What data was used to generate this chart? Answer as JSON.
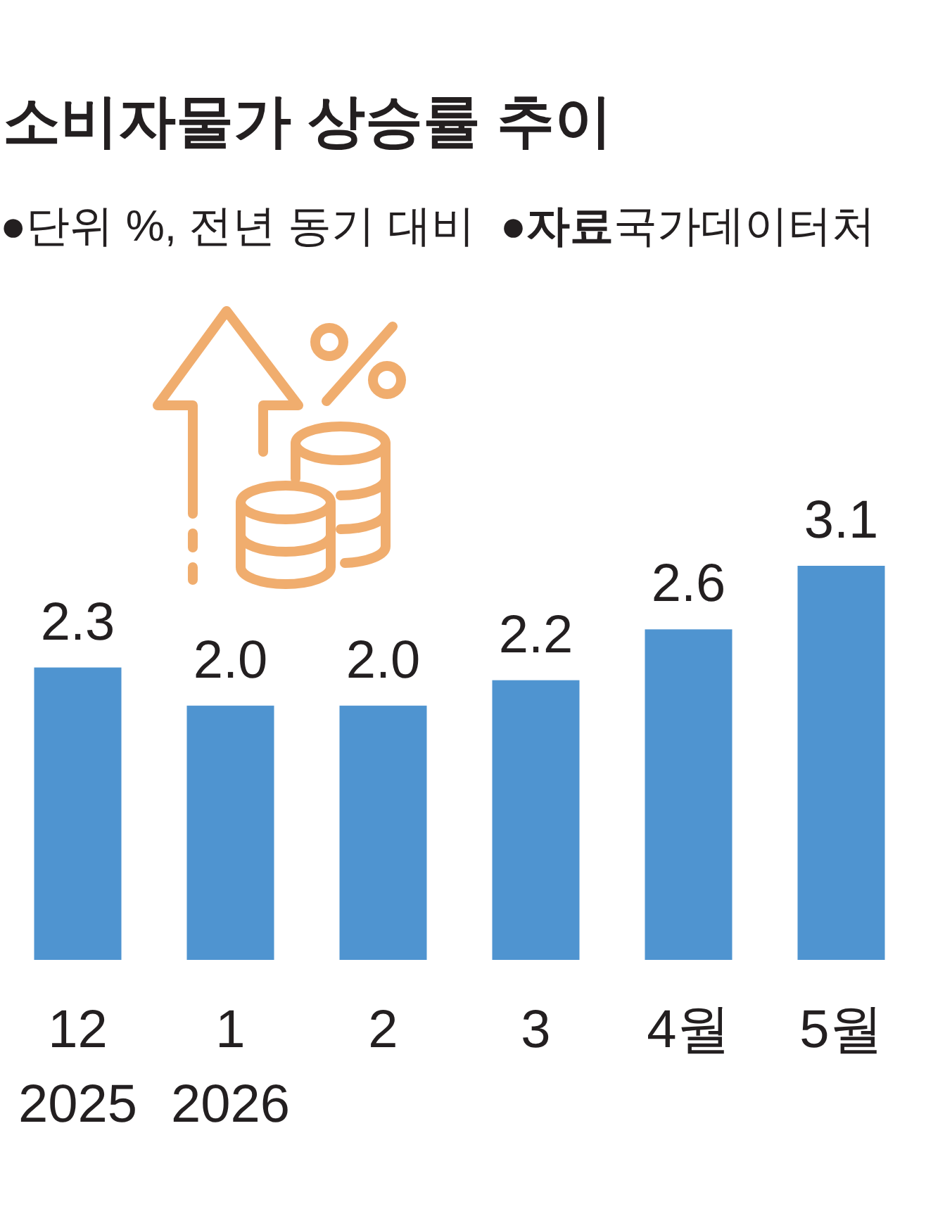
{
  "chart_data": {
    "type": "bar",
    "title": "소비자물가 상승률 추이",
    "subtitle": "●단위 %, 전년 동기 대비",
    "annotations": [
      "●**자료**국가데이터처"
    ],
    "categories": [
      "12\n2025",
      "1\n2026",
      "2",
      "3",
      "4월",
      "5월"
    ],
    "values": [
      2.3,
      2.0,
      2.0,
      2.2,
      2.6,
      3.1
    ],
    "value_labels": [
      "2.3",
      "2.0",
      "2.0",
      "2.2",
      "2.6",
      "3.1"
    ],
    "color": "#4f94d0"
  }
}
